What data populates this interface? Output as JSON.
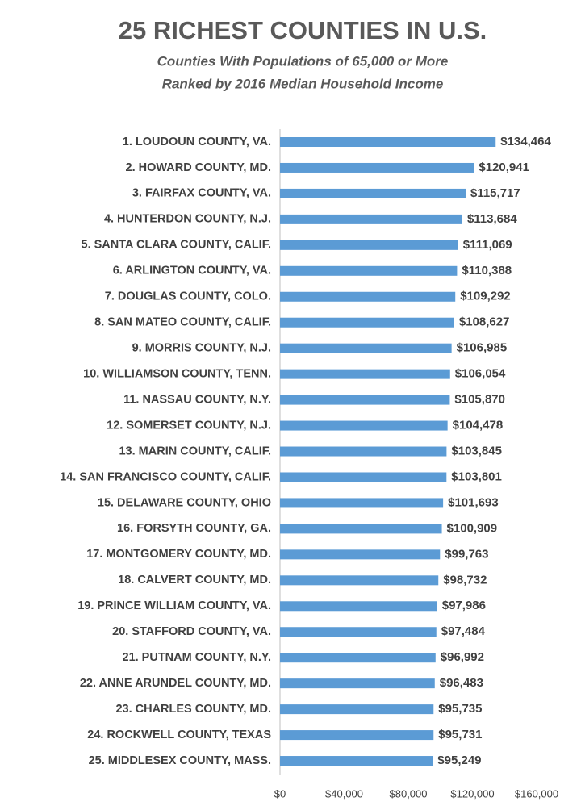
{
  "chart_data": {
    "type": "hbar",
    "title": "25 RICHEST COUNTIES IN U.S.",
    "subtitle": [
      "Counties With Populations of 65,000 or More",
      "Ranked by 2016 Median Household Income"
    ],
    "categories": [
      "1. LOUDOUN COUNTY, VA.",
      "2. HOWARD COUNTY, MD.",
      "3. FAIRFAX COUNTY, VA.",
      "4. HUNTERDON COUNTY, N.J.",
      "5. SANTA CLARA COUNTY, CALIF.",
      "6. ARLINGTON COUNTY, VA.",
      "7. DOUGLAS COUNTY, COLO.",
      "8. SAN MATEO COUNTY, CALIF.",
      "9. MORRIS COUNTY, N.J.",
      "10. WILLIAMSON COUNTY, TENN.",
      "11. NASSAU COUNTY, N.Y.",
      "12. SOMERSET COUNTY, N.J.",
      "13. MARIN COUNTY, CALIF.",
      "14. SAN FRANCISCO COUNTY, CALIF.",
      "15. DELAWARE COUNTY, OHIO",
      "16. FORSYTH COUNTY, GA.",
      "17. MONTGOMERY COUNTY, MD.",
      "18. CALVERT COUNTY, MD.",
      "19. PRINCE WILLIAM COUNTY, VA.",
      "20. STAFFORD COUNTY, VA.",
      "21. PUTNAM COUNTY, N.Y.",
      "22. ANNE ARUNDEL COUNTY, MD.",
      "23. CHARLES COUNTY, MD.",
      "24. ROCKWELL COUNTY, TEXAS",
      "25. MIDDLESEX COUNTY, MASS."
    ],
    "values": [
      134464,
      120941,
      115717,
      113684,
      111069,
      110388,
      109292,
      108627,
      106985,
      106054,
      105870,
      104478,
      103845,
      103801,
      101693,
      100909,
      99763,
      98732,
      97986,
      97484,
      96992,
      96483,
      95735,
      95731,
      95249
    ],
    "value_labels": [
      "$134,464",
      "$120,941",
      "$115,717",
      "$113,684",
      "$111,069",
      "$110,388",
      "$109,292",
      "$108,627",
      "$106,985",
      "$106,054",
      "$105,870",
      "$104,478",
      "$103,845",
      "$103,801",
      "$101,693",
      "$100,909",
      "$99,763",
      "$98,732",
      "$97,986",
      "$97,484",
      "$96,992",
      "$96,483",
      "$95,735",
      "$95,731",
      "$95,249"
    ],
    "color": "#5b9bd5",
    "xlim": [
      0,
      160000
    ],
    "xticks": [
      {
        "value": 0,
        "label": "$0"
      },
      {
        "value": 40000,
        "label": "$40,000"
      },
      {
        "value": 80000,
        "label": "$80,000"
      },
      {
        "value": 120000,
        "label": "$120,000"
      },
      {
        "value": 160000,
        "label": "$160,000"
      }
    ]
  }
}
